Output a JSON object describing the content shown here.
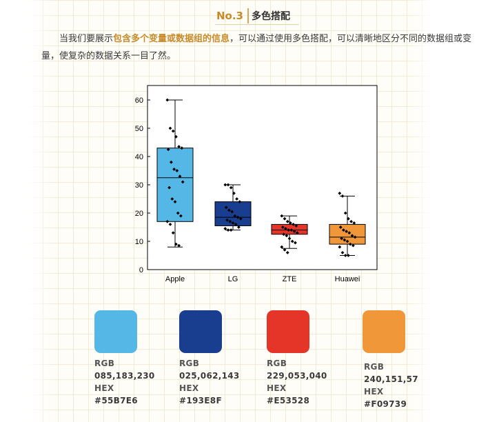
{
  "header": {
    "number": "No.3",
    "title": "多色搭配"
  },
  "intro": {
    "before": "当我们要展示",
    "highlight": "包含多个变量或数据组的信息",
    "after": "，可以通过使用多色搭配，可以清晰地区分不同的数据组或变量，使复杂的数据关系一目了然。"
  },
  "chart_data": {
    "type": "box",
    "title": "",
    "xlabel": "",
    "ylabel": "",
    "ylim": [
      0,
      60
    ],
    "yticks": [
      0,
      10,
      20,
      30,
      40,
      50,
      60
    ],
    "categories": [
      "Apple",
      "LG",
      "ZTE",
      "Huawei"
    ],
    "colors": [
      "#55B7E6",
      "#193E8F",
      "#E53528",
      "#F09739"
    ],
    "boxes": [
      {
        "min": 8,
        "q1": 17,
        "median": 32.5,
        "q3": 43,
        "max": 60,
        "points": [
          60,
          50,
          49,
          47,
          43.5,
          43,
          42.5,
          38,
          35.5,
          35,
          33,
          31,
          29,
          25,
          24,
          20,
          19,
          17,
          16,
          13,
          9,
          8.5
        ]
      },
      {
        "min": 14,
        "q1": 15.5,
        "median": 18.5,
        "q3": 24,
        "max": 30,
        "points": [
          30,
          30,
          29,
          27,
          25,
          24,
          22,
          21,
          20.5,
          19,
          18.5,
          18,
          17.5,
          17,
          16.5,
          16,
          15,
          14.5,
          14,
          14
        ]
      },
      {
        "min": 7.5,
        "q1": 12.5,
        "median": 14,
        "q3": 16,
        "max": 19,
        "points": [
          19,
          18,
          17,
          16.5,
          16,
          15.5,
          15,
          14.5,
          14,
          14,
          13.5,
          13,
          12.5,
          12,
          11,
          10,
          9.5,
          8,
          7,
          6
        ]
      },
      {
        "min": 5,
        "q1": 9,
        "median": 11.5,
        "q3": 16,
        "max": 26,
        "points": [
          27,
          26,
          20,
          18,
          17,
          16.5,
          15,
          14,
          13.5,
          13,
          12,
          11.5,
          11,
          10.5,
          10,
          9,
          8.5,
          8,
          6,
          5,
          5
        ]
      }
    ]
  },
  "swatches": [
    {
      "color": "#55B7E6",
      "rgb_label": "RGB",
      "rgb": "085,183,230",
      "hex_label": "HEX",
      "hex": "#55B7E6"
    },
    {
      "color": "#193E8F",
      "rgb_label": "RGB",
      "rgb": "025,062,143",
      "hex_label": "HEX",
      "hex": "#193E8F"
    },
    {
      "color": "#E53528",
      "rgb_label": "RGB",
      "rgb": "229,053,040",
      "hex_label": "HEX",
      "hex": "#E53528"
    },
    {
      "color": "#F09739",
      "rgb_label": "RGB",
      "rgb": "240,151,57",
      "hex_label": "HEX",
      "hex": "#F09739"
    }
  ]
}
